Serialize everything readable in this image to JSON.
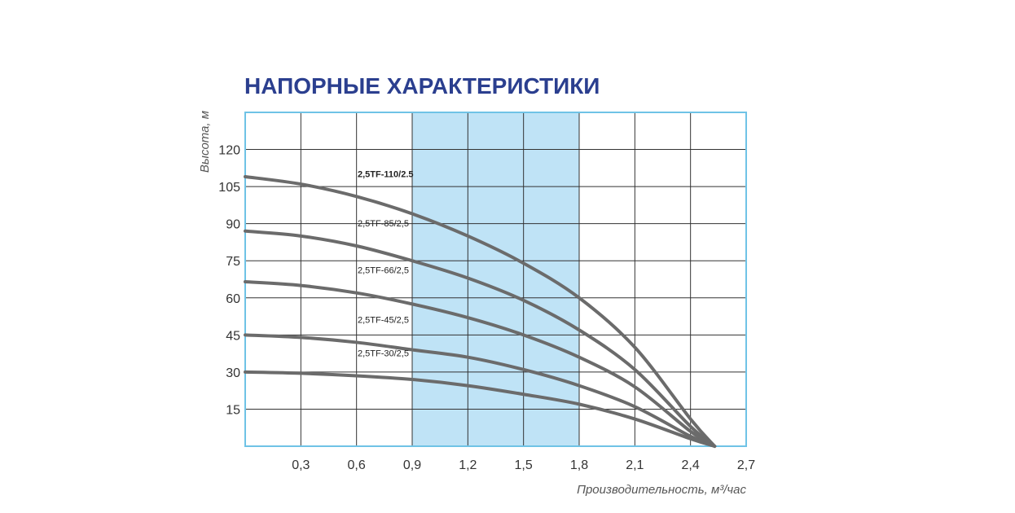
{
  "chart_data": {
    "type": "line",
    "title": "НАПОРНЫЕ ХАРАКТЕРИСТИКИ",
    "ylabel": "Высота, м",
    "xlabel": "Производительность, м³/час",
    "xlim": [
      0,
      2.7
    ],
    "ylim": [
      0,
      135
    ],
    "x_ticks": [
      "0,3",
      "0,6",
      "0,9",
      "1,2",
      "1,5",
      "1,8",
      "2,1",
      "2,4",
      "2,7"
    ],
    "x_tick_values": [
      0.3,
      0.6,
      0.9,
      1.2,
      1.5,
      1.8,
      2.1,
      2.4,
      2.7
    ],
    "y_ticks": [
      "15",
      "30",
      "45",
      "60",
      "75",
      "90",
      "105",
      "120"
    ],
    "y_tick_values": [
      15,
      30,
      45,
      60,
      75,
      90,
      105,
      120
    ],
    "grid": true,
    "highlight_range": [
      0.9,
      1.8
    ],
    "colors": {
      "title": "#2b3f8f",
      "frame": "#6fc3e6",
      "grid": "#333333",
      "highlight": "#bfe3f6",
      "curves": "#6b6b6b"
    },
    "series": [
      {
        "name": "2,5TF-110/2.5",
        "x": [
          0,
          0.3,
          0.6,
          0.9,
          1.2,
          1.5,
          1.8,
          2.1,
          2.4,
          2.53
        ],
        "y": [
          109,
          106,
          101,
          94,
          85,
          74,
          60,
          40,
          11,
          0
        ]
      },
      {
        "name": "2,5TF-85/2,5",
        "x": [
          0,
          0.3,
          0.6,
          0.9,
          1.2,
          1.5,
          1.8,
          2.1,
          2.4,
          2.53
        ],
        "y": [
          87,
          85,
          81,
          75,
          68,
          59,
          47,
          31,
          8,
          0
        ]
      },
      {
        "name": "2,5TF-66/2,5",
        "x": [
          0,
          0.3,
          0.6,
          0.9,
          1.2,
          1.5,
          1.8,
          2.1,
          2.4,
          2.53
        ],
        "y": [
          66.5,
          65,
          62,
          57.5,
          52,
          45,
          36,
          24,
          6,
          0
        ]
      },
      {
        "name": "2,5TF-45/2,5",
        "x": [
          0,
          0.3,
          0.6,
          0.9,
          1.2,
          1.5,
          1.8,
          2.1,
          2.4,
          2.53
        ],
        "y": [
          45,
          44,
          42,
          39,
          36,
          31,
          24.5,
          16,
          4,
          0
        ]
      },
      {
        "name": "2,5TF-30/2,5",
        "x": [
          0,
          0.3,
          0.6,
          0.9,
          1.2,
          1.5,
          1.8,
          2.1,
          2.4,
          2.53
        ],
        "y": [
          30,
          29.5,
          28.5,
          27,
          24.5,
          21,
          17,
          11,
          3,
          0
        ]
      }
    ]
  }
}
